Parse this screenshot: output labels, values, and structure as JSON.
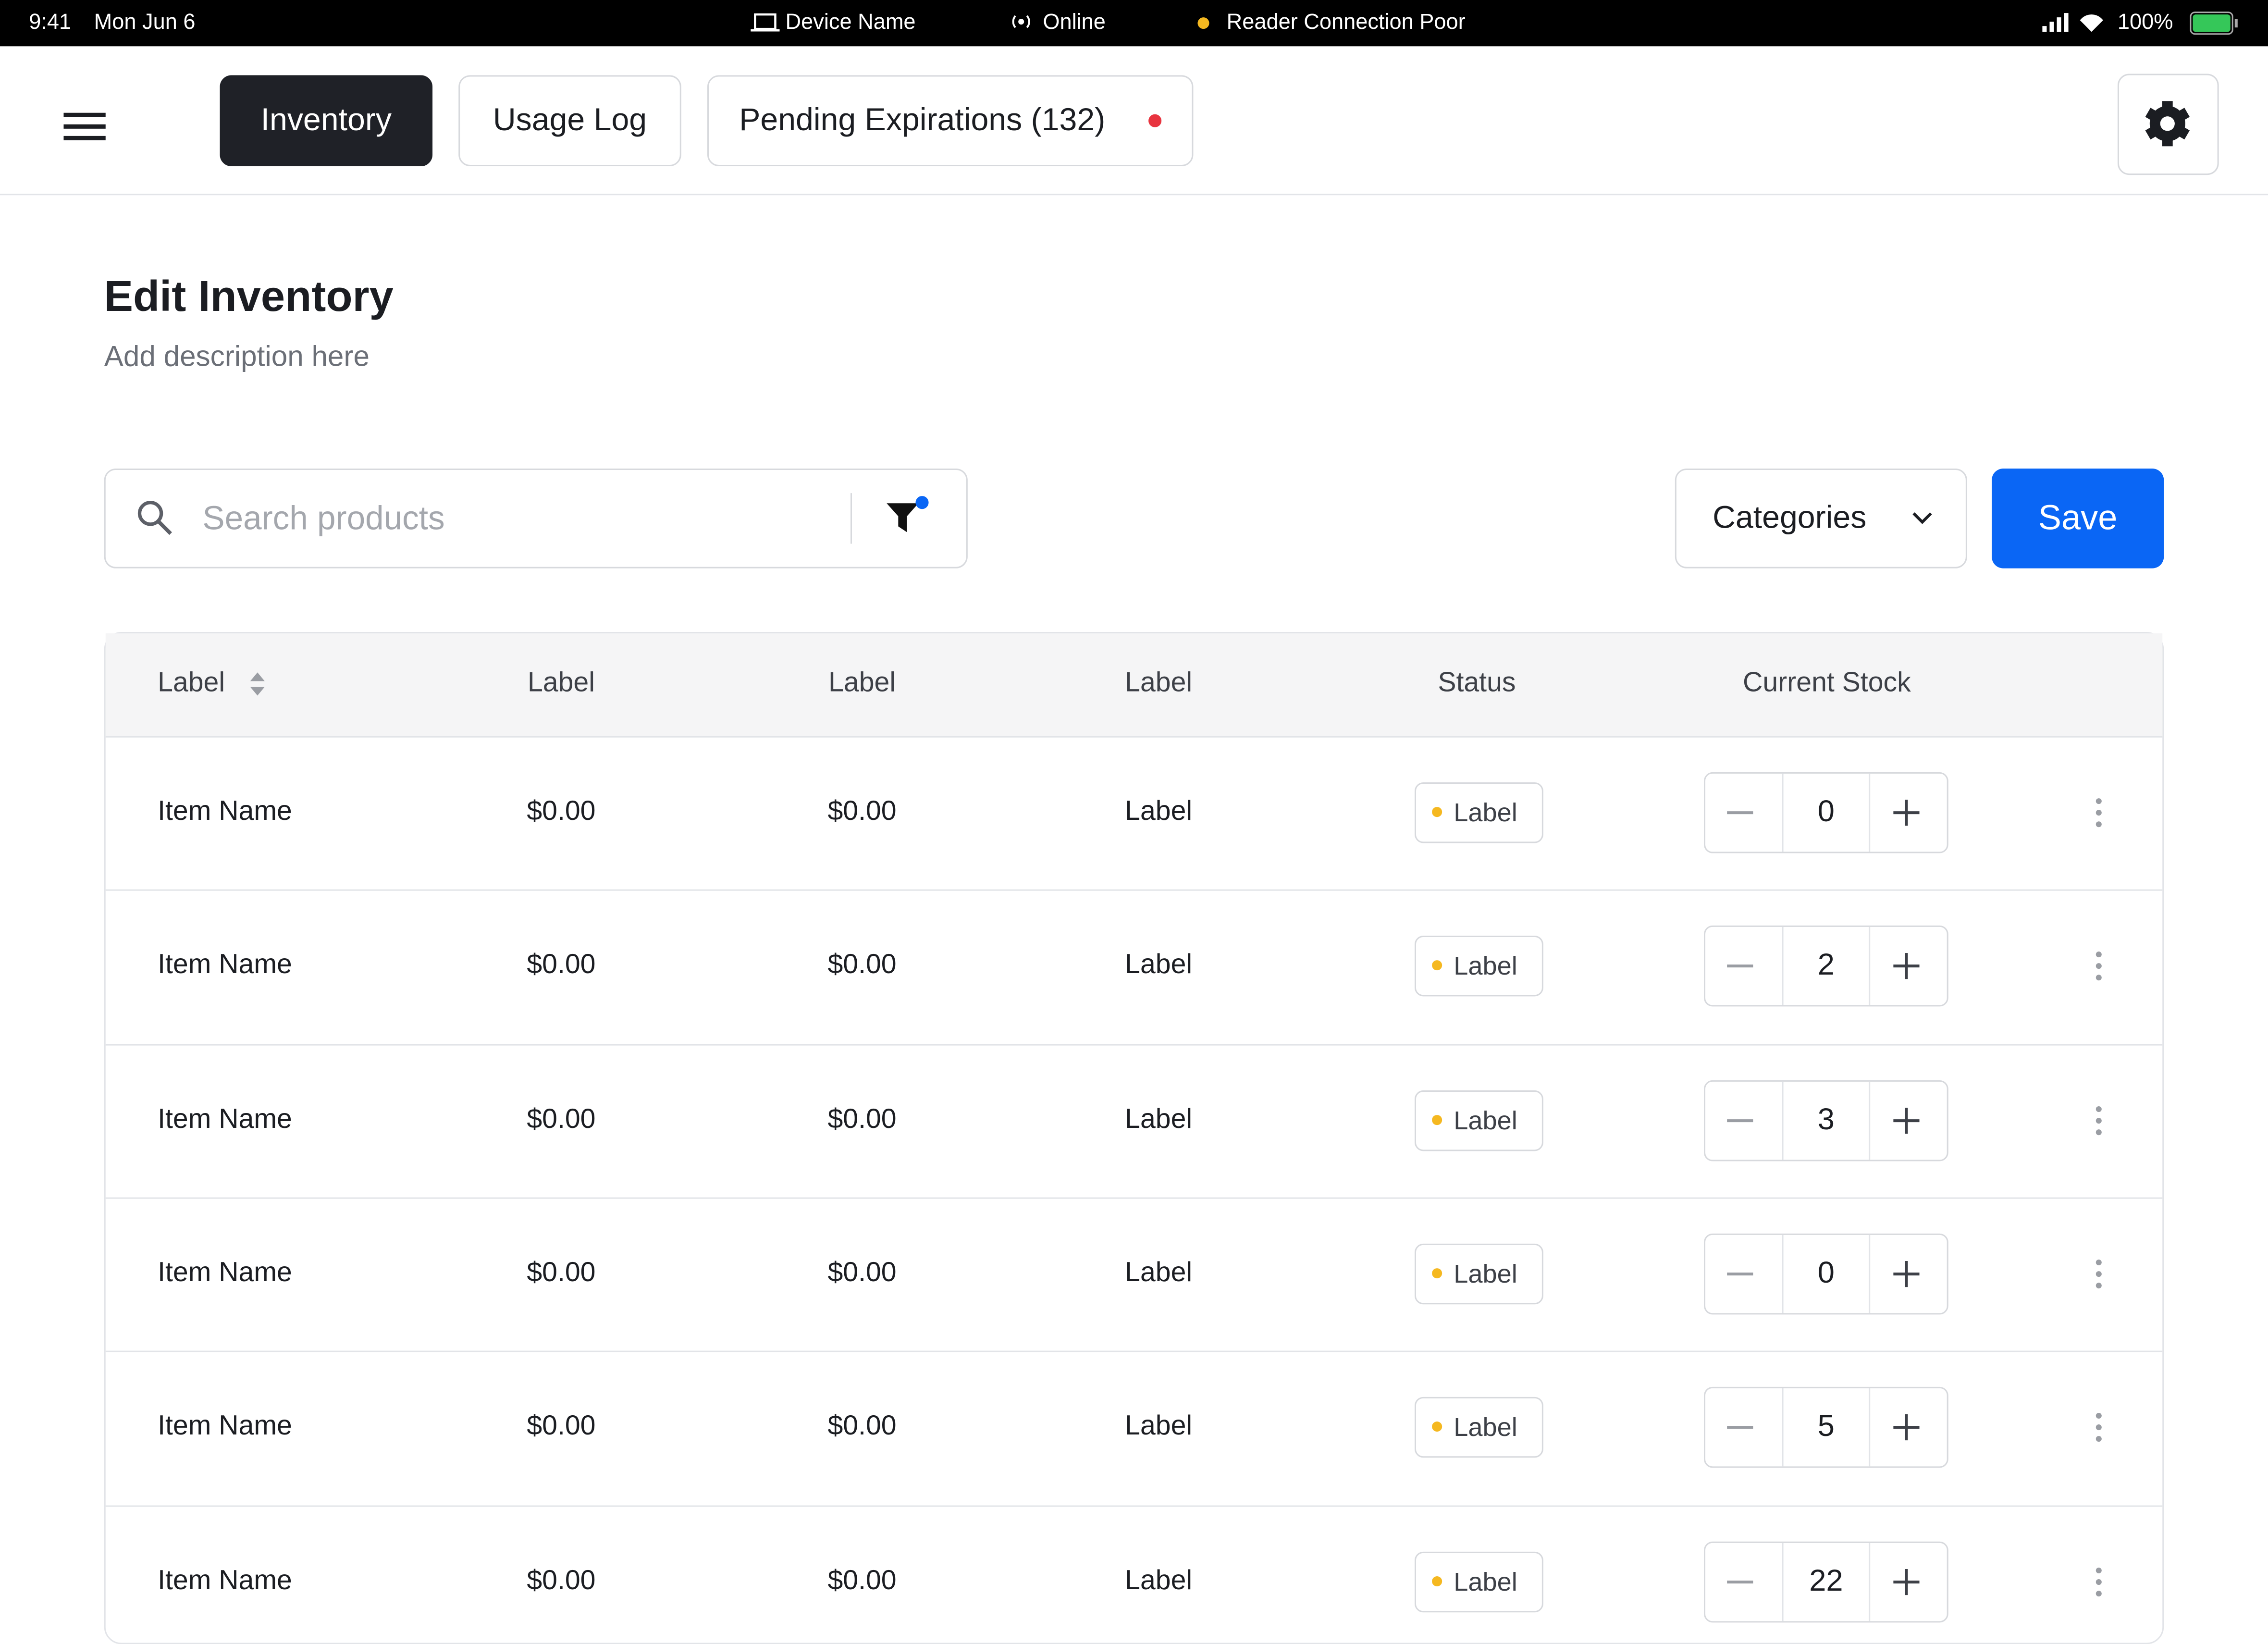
{
  "status_bar": {
    "time": "9:41",
    "date": "Mon Jun 6",
    "device": "Device Name",
    "network": "Online",
    "reader": "Reader Connection Poor",
    "battery": "100%"
  },
  "nav": {
    "tabs": [
      "Inventory",
      "Usage Log",
      "Pending Expirations (132)"
    ]
  },
  "header": {
    "title": "Edit Inventory",
    "description": "Add description here"
  },
  "toolbar": {
    "search_placeholder": "Search products",
    "categories": "Categories",
    "save": "Save"
  },
  "table": {
    "headers": [
      "Label",
      "Label",
      "Label",
      "Label",
      "Status",
      "Current Stock"
    ],
    "rows": [
      [
        "Item Name",
        "$0.00",
        "$0.00",
        "Label",
        "Label",
        0
      ],
      [
        "Item Name",
        "$0.00",
        "$0.00",
        "Label",
        "Label",
        2
      ],
      [
        "Item Name",
        "$0.00",
        "$0.00",
        "Label",
        "Label",
        3
      ],
      [
        "Item Name",
        "$0.00",
        "$0.00",
        "Label",
        "Label",
        0
      ],
      [
        "Item Name",
        "$0.00",
        "$0.00",
        "Label",
        "Label",
        5
      ],
      [
        "Item Name",
        "$0.00",
        "$0.00",
        "Label",
        "Label",
        22
      ]
    ]
  }
}
